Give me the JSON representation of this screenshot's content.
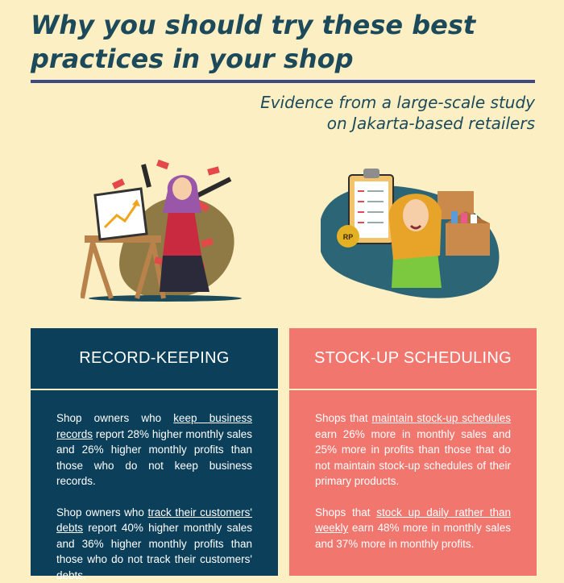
{
  "header": {
    "title": "Why you should try these best practices in your shop",
    "subtitle_line1": "Evidence from a large-scale study",
    "subtitle_line2": "on Jakarta-based retailers"
  },
  "illustrations": {
    "left": {
      "icon": "woman-celebrating-sales-chart-icon"
    },
    "right": {
      "icon": "woman-with-checklist-and-stock-boxes-icon",
      "coin_label": "RP"
    }
  },
  "cards": {
    "record_keeping": {
      "title": "RECORD-KEEPING",
      "p1_pre": "Shop owners who ",
      "p1_link": "keep business records",
      "p1_post": " report 28% higher monthly sales and 26% higher monthly profits than those who do not keep business records.",
      "p2_pre": "Shop owners who ",
      "p2_link": "track their customers' debts",
      "p2_post": " report 40% higher monthly sales and 36% higher monthly profits than those who do not track their customers' debts."
    },
    "stock_up": {
      "title": "STOCK-UP SCHEDULING",
      "p1_pre": "Shops that ",
      "p1_link": "maintain stock-up schedules",
      "p1_post": " earn 26% more in monthly sales and 25% more in profits than those that do not maintain stock-up schedules of their primary products.",
      "p2_pre": "Shops that ",
      "p2_link": "stock up daily rather than weekly",
      "p2_post": " earn 48% more in monthly sales and 37% more in monthly profits."
    }
  },
  "colors": {
    "background": "#fcefc4",
    "title": "#1c4a5a",
    "rule": "#3b4a84",
    "record_keeping_card": "#0b3f5a",
    "stock_up_card": "#f1766e"
  }
}
